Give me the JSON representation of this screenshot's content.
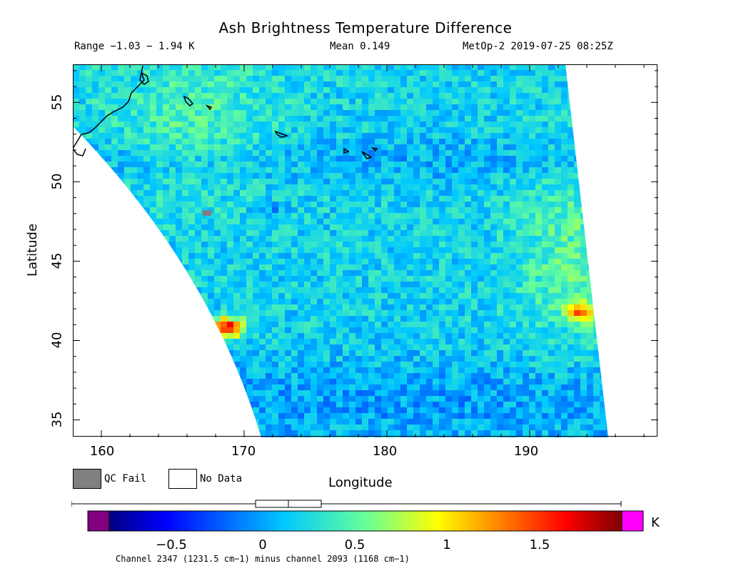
{
  "header": {
    "title": "Ash Brightness Temperature Difference",
    "range": "Range −1.03 − 1.94 K",
    "mean": "Mean 0.149",
    "satellite_time": "MetOp-2 2019-07-25 08:25Z"
  },
  "map": {
    "xlabel": "Longitude",
    "ylabel": "Latitude",
    "lon_range": [
      158,
      199
    ],
    "lat_range": [
      33.9,
      57.4
    ],
    "xticks": [
      "160",
      "170",
      "180",
      "190"
    ],
    "yticks": [
      "35",
      "40",
      "45",
      "50",
      "55"
    ],
    "swath": {
      "left_edge_lon_at_top": 158.0,
      "left_edge_lon_at_bottom": 171.2,
      "left_edge_lat_top": 53.5,
      "right_edge_lon_at_top": 192.5,
      "right_edge_lon_at_bottom": 195.5
    },
    "hotspots": [
      {
        "lon": 168.6,
        "lat": 41.0,
        "value": 1.75
      },
      {
        "lon": 193.5,
        "lat": 41.9,
        "value": 1.2
      },
      {
        "lon": 171.8,
        "lat": 48.2,
        "value": -0.1
      }
    ],
    "qc_fail_color": "#808080",
    "no_data_color": "#ffffff"
  },
  "legend": {
    "qc_fail_label": "QC Fail",
    "no_data_label": "No Data"
  },
  "colorbar": {
    "units": "K",
    "vmin": -0.9,
    "vmax": 1.95,
    "ticks": [
      "−0.5",
      "0",
      "0.5",
      "1",
      "1.5"
    ],
    "tick_values": [
      -0.5,
      0,
      0.5,
      1,
      1.5
    ],
    "below_color": "#800080",
    "above_color": "#ff00ff",
    "footnote": "Channel 2347 (1231.5 cm−1) minus channel 2093 (1168 cm−1)"
  },
  "boxplot": {
    "whisker_min": -1.03,
    "q1": 0.0,
    "median": 0.149,
    "q3": 0.32,
    "whisker_max": 1.94
  }
}
